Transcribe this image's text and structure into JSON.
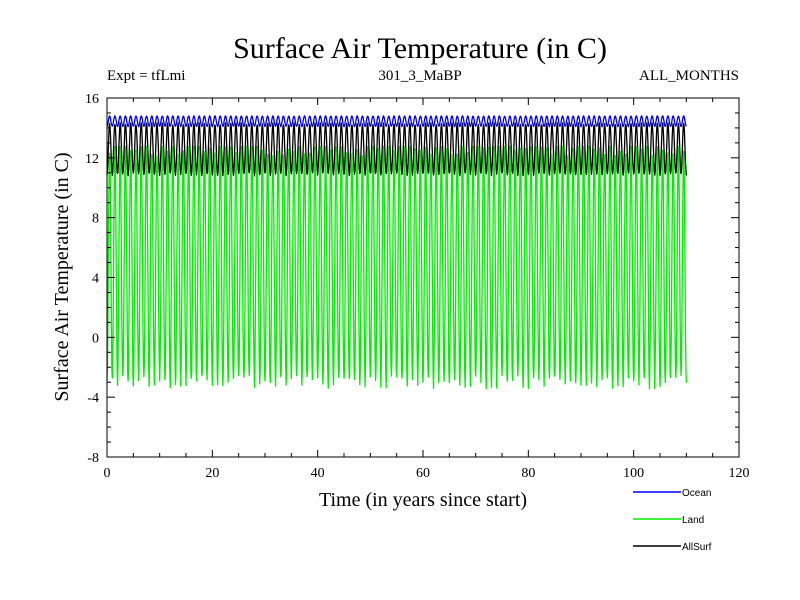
{
  "chart_data": {
    "type": "line",
    "title": "Surface Air Temperature (in C)",
    "subtitle_left": "Expt = tfLmi",
    "subtitle_center": "301_3_MaBP",
    "subtitle_right": "ALL_MONTHS",
    "xlabel": "Time (in years since start)",
    "ylabel": "Surface Air Temperature (in C)",
    "xlim": [
      0,
      120
    ],
    "ylim": [
      -8,
      16
    ],
    "xticks": [
      0,
      20,
      40,
      60,
      80,
      100,
      120
    ],
    "yticks": [
      -8,
      -4,
      0,
      4,
      8,
      12,
      16
    ],
    "x_end": 110,
    "cycles_per_year": 1,
    "grid": false,
    "legend_position": "bottom-right",
    "series": [
      {
        "name": "Ocean",
        "color": "#0000ff",
        "min": 14.1,
        "max": 14.8
      },
      {
        "name": "Land",
        "color": "#00ee00",
        "min": -3.0,
        "max": 12.6
      },
      {
        "name": "AllSurf",
        "color": "#000000",
        "min": 10.9,
        "max": 14.3
      }
    ]
  }
}
